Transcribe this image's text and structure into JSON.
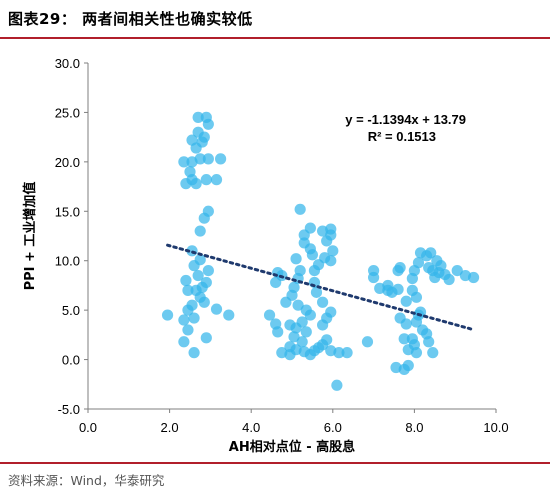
{
  "header": {
    "title": "图表29：  两者间相关性也确实较低"
  },
  "footer": {
    "source": "资料来源：Wind，华泰研究"
  },
  "colors": {
    "accent_rule": "#b11f2b",
    "point": "#35b6ea",
    "trendline": "#1f3a6e"
  },
  "chart_data": {
    "type": "scatter",
    "xlabel": "AH相对点位 - 高股息",
    "ylabel": "PPI + 工业增加值",
    "xlim": [
      0.0,
      10.0
    ],
    "ylim": [
      -5.0,
      30.0
    ],
    "x_ticks": [
      "0.0",
      "2.0",
      "4.0",
      "6.0",
      "8.0",
      "10.0"
    ],
    "y_ticks": [
      "-5.0",
      "0.0",
      "5.0",
      "10.0",
      "15.0",
      "20.0",
      "25.0",
      "30.0"
    ],
    "grid": false,
    "annotations": [
      "y = -1.1394x + 13.79",
      "R² = 0.1513"
    ],
    "trendline": {
      "type": "linear",
      "slope": -1.1394,
      "intercept": 13.79,
      "x_range": [
        1.95,
        9.4
      ]
    },
    "points": [
      [
        1.95,
        4.5
      ],
      [
        2.35,
        4.0
      ],
      [
        2.45,
        3.0
      ],
      [
        2.35,
        1.8
      ],
      [
        2.6,
        0.7
      ],
      [
        2.45,
        5.0
      ],
      [
        2.6,
        4.2
      ],
      [
        2.9,
        2.2
      ],
      [
        3.15,
        5.1
      ],
      [
        3.45,
        4.5
      ],
      [
        2.85,
        5.8
      ],
      [
        2.75,
        6.3
      ],
      [
        2.55,
        5.5
      ],
      [
        2.65,
        7.0
      ],
      [
        2.45,
        7.0
      ],
      [
        2.8,
        7.3
      ],
      [
        2.9,
        7.8
      ],
      [
        2.4,
        8.0
      ],
      [
        2.7,
        8.5
      ],
      [
        2.95,
        9.0
      ],
      [
        2.6,
        9.5
      ],
      [
        2.75,
        10.1
      ],
      [
        2.55,
        11.0
      ],
      [
        2.75,
        13.0
      ],
      [
        2.85,
        14.3
      ],
      [
        2.95,
        15.0
      ],
      [
        2.65,
        17.8
      ],
      [
        2.4,
        17.8
      ],
      [
        2.55,
        18.2
      ],
      [
        2.9,
        18.2
      ],
      [
        3.15,
        18.2
      ],
      [
        2.5,
        19.0
      ],
      [
        2.35,
        20.0
      ],
      [
        2.55,
        20.0
      ],
      [
        2.75,
        20.3
      ],
      [
        2.95,
        20.3
      ],
      [
        3.25,
        20.3
      ],
      [
        2.65,
        21.4
      ],
      [
        2.8,
        22.0
      ],
      [
        2.55,
        22.2
      ],
      [
        2.85,
        22.5
      ],
      [
        2.95,
        23.8
      ],
      [
        2.7,
        24.5
      ],
      [
        2.9,
        24.5
      ],
      [
        2.7,
        23.0
      ],
      [
        4.45,
        4.5
      ],
      [
        4.6,
        3.6
      ],
      [
        4.65,
        2.8
      ],
      [
        4.75,
        0.7
      ],
      [
        4.85,
        5.8
      ],
      [
        4.6,
        7.8
      ],
      [
        4.75,
        8.5
      ],
      [
        4.65,
        8.8
      ],
      [
        5.0,
        6.5
      ],
      [
        5.05,
        7.3
      ],
      [
        5.15,
        8.2
      ],
      [
        5.2,
        9.0
      ],
      [
        5.1,
        10.2
      ],
      [
        4.95,
        0.5
      ],
      [
        4.95,
        1.3
      ],
      [
        5.05,
        2.3
      ],
      [
        5.1,
        3.2
      ],
      [
        4.95,
        3.5
      ],
      [
        5.15,
        5.5
      ],
      [
        5.35,
        5.0
      ],
      [
        5.45,
        4.5
      ],
      [
        5.25,
        3.8
      ],
      [
        5.35,
        2.8
      ],
      [
        5.25,
        1.8
      ],
      [
        5.1,
        1.0
      ],
      [
        5.3,
        0.8
      ],
      [
        5.45,
        0.5
      ],
      [
        5.55,
        0.9
      ],
      [
        5.65,
        1.2
      ],
      [
        5.45,
        11.2
      ],
      [
        5.3,
        11.8
      ],
      [
        5.3,
        12.6
      ],
      [
        5.45,
        13.3
      ],
      [
        5.5,
        10.6
      ],
      [
        5.65,
        9.6
      ],
      [
        5.8,
        10.3
      ],
      [
        5.75,
        13.0
      ],
      [
        5.85,
        12.0
      ],
      [
        5.95,
        12.6
      ],
      [
        6.0,
        11.0
      ],
      [
        5.95,
        13.2
      ],
      [
        5.95,
        10.0
      ],
      [
        5.2,
        15.2
      ],
      [
        5.55,
        9.0
      ],
      [
        5.55,
        7.8
      ],
      [
        5.6,
        6.8
      ],
      [
        5.75,
        5.8
      ],
      [
        5.95,
        4.8
      ],
      [
        5.85,
        4.2
      ],
      [
        5.75,
        3.5
      ],
      [
        5.85,
        2.0
      ],
      [
        5.75,
        1.5
      ],
      [
        5.95,
        0.9
      ],
      [
        6.15,
        0.7
      ],
      [
        6.35,
        0.7
      ],
      [
        6.1,
        -2.6
      ],
      [
        6.85,
        1.8
      ],
      [
        7.0,
        8.3
      ],
      [
        7.0,
        9.0
      ],
      [
        7.15,
        7.2
      ],
      [
        7.35,
        7.0
      ],
      [
        7.45,
        6.8
      ],
      [
        7.35,
        7.5
      ],
      [
        7.6,
        9.0
      ],
      [
        7.65,
        9.3
      ],
      [
        7.6,
        7.1
      ],
      [
        7.8,
        5.9
      ],
      [
        7.65,
        4.2
      ],
      [
        7.8,
        3.6
      ],
      [
        7.75,
        2.1
      ],
      [
        7.95,
        2.1
      ],
      [
        8.0,
        1.5
      ],
      [
        7.85,
        1.0
      ],
      [
        8.05,
        0.7
      ],
      [
        7.85,
        -0.6
      ],
      [
        7.75,
        -1.0
      ],
      [
        7.55,
        -0.8
      ],
      [
        8.1,
        4.5
      ],
      [
        8.05,
        3.8
      ],
      [
        8.2,
        3.0
      ],
      [
        8.3,
        2.6
      ],
      [
        8.35,
        1.8
      ],
      [
        8.45,
        0.7
      ],
      [
        7.95,
        8.2
      ],
      [
        8.0,
        9.0
      ],
      [
        8.1,
        9.8
      ],
      [
        8.15,
        10.8
      ],
      [
        8.3,
        10.5
      ],
      [
        8.35,
        9.3
      ],
      [
        8.45,
        9.0
      ],
      [
        8.4,
        10.8
      ],
      [
        8.55,
        10.0
      ],
      [
        8.6,
        8.8
      ],
      [
        8.75,
        8.6
      ],
      [
        8.65,
        9.5
      ],
      [
        8.5,
        8.3
      ],
      [
        8.85,
        8.1
      ],
      [
        9.05,
        9.0
      ],
      [
        9.25,
        8.5
      ],
      [
        9.45,
        8.3
      ],
      [
        7.95,
        7.0
      ],
      [
        8.05,
        6.3
      ],
      [
        8.15,
        4.8
      ]
    ]
  }
}
